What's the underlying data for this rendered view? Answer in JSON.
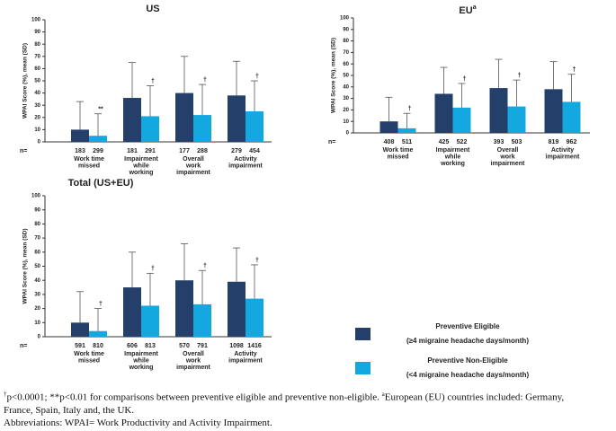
{
  "chart_data": [
    {
      "type": "bar",
      "title": "US",
      "ylabel": "WPAI Score (%), mean (SD)",
      "n_label": "n=",
      "categories": [
        [
          "Work time",
          "missed"
        ],
        [
          "Impairment",
          "while",
          "working"
        ],
        [
          "Overall",
          "work",
          "impairment"
        ],
        [
          "Activity",
          "impairment"
        ]
      ],
      "ylim": [
        0,
        100
      ],
      "yticks": [
        0,
        10,
        20,
        30,
        40,
        50,
        60,
        70,
        80,
        90,
        100
      ],
      "series": [
        {
          "name": "Preventive Eligible",
          "color": "#253f6b",
          "values": [
            10,
            36,
            40,
            38
          ],
          "errors": [
            23,
            29,
            30,
            28
          ],
          "n": [
            183,
            181,
            177,
            279
          ]
        },
        {
          "name": "Preventive Non-Eligible",
          "color": "#13a8e0",
          "values": [
            5,
            21,
            22,
            25
          ],
          "errors": [
            18,
            25,
            25,
            25
          ],
          "n": [
            299,
            291,
            288,
            454
          ],
          "markers": [
            "**",
            "†",
            "†",
            "†"
          ]
        }
      ]
    },
    {
      "type": "bar",
      "title": "EU",
      "title_sup": "a",
      "ylabel": "WPAI Score (%), mean (SD)",
      "n_label": "n=",
      "categories": [
        [
          "Work time",
          "missed"
        ],
        [
          "Impairment",
          "while",
          "working"
        ],
        [
          "Overall",
          "work",
          "impairment"
        ],
        [
          "Activity",
          "impairment"
        ]
      ],
      "ylim": [
        0,
        100
      ],
      "yticks": [
        0,
        10,
        20,
        30,
        40,
        50,
        60,
        70,
        80,
        90,
        100
      ],
      "series": [
        {
          "name": "Preventive Eligible",
          "color": "#253f6b",
          "values": [
            10,
            34,
            39,
            38
          ],
          "errors": [
            21,
            23,
            25,
            24
          ],
          "n": [
            408,
            425,
            393,
            819
          ]
        },
        {
          "name": "Preventive Non-Eligible",
          "color": "#13a8e0",
          "values": [
            4,
            22,
            23,
            27
          ],
          "errors": [
            13,
            21,
            23,
            24
          ],
          "n": [
            511,
            522,
            503,
            962
          ],
          "markers": [
            "†",
            "†",
            "†",
            "†"
          ]
        }
      ]
    },
    {
      "type": "bar",
      "title": "Total (US+EU)",
      "ylabel": "WPAI Score (%), mean (SD)",
      "n_label": "n=",
      "categories": [
        [
          "Work time",
          "missed"
        ],
        [
          "Impairment",
          "while",
          "working"
        ],
        [
          "Overall",
          "work",
          "impairment"
        ],
        [
          "Activity",
          "impairment"
        ]
      ],
      "ylim": [
        0,
        100
      ],
      "yticks": [
        0,
        10,
        20,
        30,
        40,
        50,
        60,
        70,
        80,
        90,
        100
      ],
      "series": [
        {
          "name": "Preventive Eligible",
          "detail": "(≥4 migraine headache days/month)",
          "color": "#253f6b",
          "values": [
            10,
            35,
            40,
            39
          ],
          "errors": [
            22,
            25,
            26,
            24
          ],
          "n": [
            591,
            606,
            570,
            1098
          ]
        },
        {
          "name": "Preventive Non-Eligible",
          "detail": "(<4 migraine headache days/month)",
          "color": "#13a8e0",
          "values": [
            4,
            22,
            23,
            27
          ],
          "errors": [
            16,
            23,
            24,
            24
          ],
          "n": [
            810,
            813,
            791,
            1416
          ],
          "markers": [
            "†",
            "†",
            "†",
            "†"
          ]
        }
      ]
    }
  ],
  "footnote": {
    "dagger": "†",
    "text1": "p<0.0001; **p<0.01 for comparisons between preventive eligible and preventive non-eligible. ",
    "sup": "a",
    "text2": "European (EU) countries included: Germany,",
    "line2": "France, Spain, Italy and, the UK.",
    "line3": "Abbreviations: WPAI= Work Productivity and Activity Impairment."
  }
}
